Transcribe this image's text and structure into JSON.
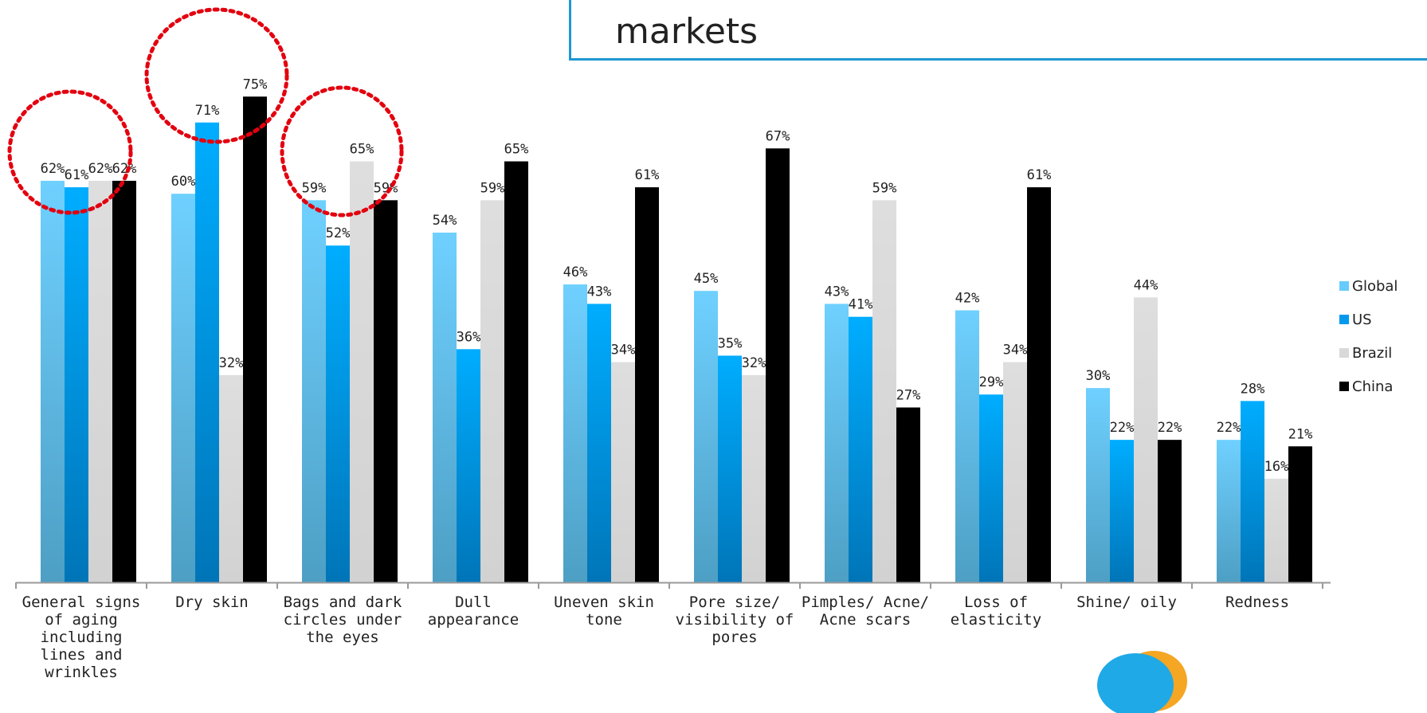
{
  "header": {
    "title_fragment": "markets"
  },
  "chart_data": {
    "type": "bar",
    "categories": [
      "General signs of aging including lines and wrinkles",
      "Dry skin",
      "Bags and dark circles under the eyes",
      "Dull appearance",
      "Uneven skin tone",
      "Pore size/ visibility of pores",
      "Pimples/ Acne/ Acne scars",
      "Loss of elasticity",
      "Shine/ oily",
      "Redness"
    ],
    "series": [
      {
        "name": "Global",
        "color": "#66ccff",
        "values": [
          62,
          60,
          59,
          54,
          46,
          45,
          43,
          42,
          30,
          22
        ]
      },
      {
        "name": "US",
        "color": "#0099ee",
        "values": [
          61,
          71,
          52,
          36,
          43,
          35,
          41,
          29,
          22,
          28
        ]
      },
      {
        "name": "Brazil",
        "color": "#d9d9d9",
        "values": [
          62,
          32,
          65,
          59,
          34,
          32,
          59,
          34,
          44,
          16
        ]
      },
      {
        "name": "China",
        "color": "#000000",
        "values": [
          62,
          75,
          59,
          65,
          61,
          67,
          27,
          61,
          22,
          21
        ]
      }
    ],
    "value_suffix": "%",
    "ylim": [
      0,
      80
    ],
    "grid": false,
    "legend_position": "right",
    "highlighted_categories": [
      0,
      1,
      2
    ]
  }
}
